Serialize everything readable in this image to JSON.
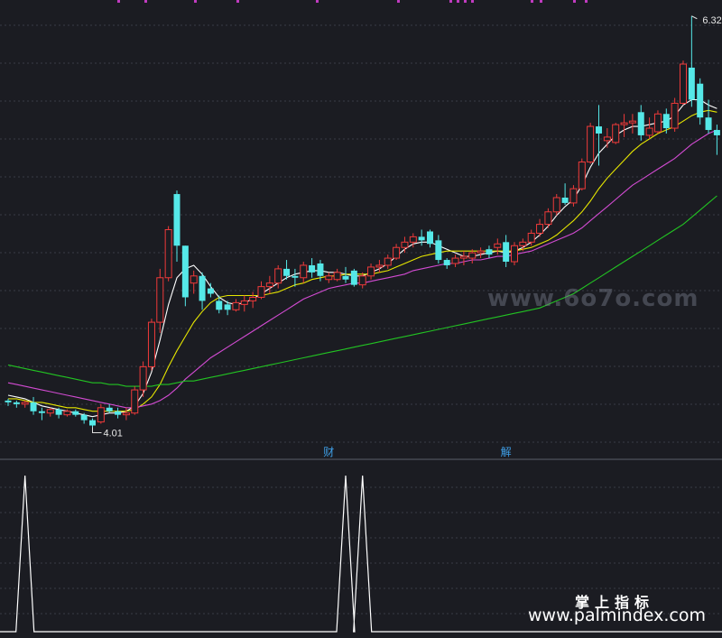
{
  "chart_data": [
    {
      "type": "candlestick",
      "y_range": [
        3.83,
        6.41
      ],
      "max_label": "6.32",
      "min_label": "4.01",
      "markers": [
        "财",
        "解"
      ],
      "candles": [
        [
          4.16,
          4.17,
          4.13,
          4.15
        ],
        [
          4.15,
          4.16,
          4.12,
          4.14
        ],
        [
          4.14,
          4.16,
          4.12,
          4.15
        ],
        [
          4.15,
          4.18,
          4.08,
          4.1
        ],
        [
          4.1,
          4.12,
          4.05,
          4.09
        ],
        [
          4.09,
          4.12,
          4.07,
          4.11
        ],
        [
          4.11,
          4.12,
          4.06,
          4.08
        ],
        [
          4.08,
          4.11,
          4.07,
          4.1
        ],
        [
          4.1,
          4.11,
          4.07,
          4.08
        ],
        [
          4.08,
          4.09,
          4.03,
          4.05
        ],
        [
          4.05,
          4.06,
          4.01,
          4.02
        ],
        [
          4.04,
          4.14,
          4.03,
          4.12
        ],
        [
          4.12,
          4.14,
          4.09,
          4.1
        ],
        [
          4.1,
          4.12,
          4.06,
          4.08
        ],
        [
          4.08,
          4.12,
          4.05,
          4.09
        ],
        [
          4.09,
          4.24,
          4.08,
          4.22
        ],
        [
          4.22,
          4.38,
          4.18,
          4.35
        ],
        [
          4.35,
          4.62,
          4.33,
          4.6
        ],
        [
          4.6,
          4.9,
          4.54,
          4.85
        ],
        [
          4.85,
          5.14,
          4.83,
          5.12
        ],
        [
          5.32,
          5.34,
          4.94,
          5.03
        ],
        [
          5.03,
          5.03,
          4.69,
          4.74
        ],
        [
          4.82,
          4.89,
          4.76,
          4.86
        ],
        [
          4.86,
          4.88,
          4.67,
          4.72
        ],
        [
          4.79,
          4.82,
          4.74,
          4.76
        ],
        [
          4.72,
          4.75,
          4.65,
          4.67
        ],
        [
          4.7,
          4.72,
          4.64,
          4.67
        ],
        [
          4.67,
          4.73,
          4.66,
          4.71
        ],
        [
          4.7,
          4.75,
          4.66,
          4.72
        ],
        [
          4.72,
          4.77,
          4.68,
          4.74
        ],
        [
          4.74,
          4.83,
          4.73,
          4.8
        ],
        [
          4.8,
          4.86,
          4.76,
          4.82
        ],
        [
          4.82,
          4.92,
          4.79,
          4.9
        ],
        [
          4.9,
          4.95,
          4.84,
          4.86
        ],
        [
          4.86,
          4.9,
          4.8,
          4.85
        ],
        [
          4.85,
          4.94,
          4.82,
          4.92
        ],
        [
          4.92,
          4.96,
          4.85,
          4.88
        ],
        [
          4.93,
          4.95,
          4.83,
          4.86
        ],
        [
          4.84,
          4.88,
          4.82,
          4.86
        ],
        [
          4.84,
          4.9,
          4.83,
          4.88
        ],
        [
          4.86,
          4.91,
          4.82,
          4.84
        ],
        [
          4.89,
          4.9,
          4.8,
          4.81
        ],
        [
          4.81,
          4.88,
          4.79,
          4.86
        ],
        [
          4.86,
          4.93,
          4.84,
          4.91
        ],
        [
          4.91,
          4.95,
          4.88,
          4.92
        ],
        [
          4.92,
          4.98,
          4.9,
          4.96
        ],
        [
          4.96,
          5.04,
          4.95,
          5.02
        ],
        [
          5.02,
          5.08,
          4.99,
          5.05
        ],
        [
          5.05,
          5.1,
          5.02,
          5.08
        ],
        [
          5.08,
          5.12,
          5.03,
          5.06
        ],
        [
          5.11,
          5.12,
          5.02,
          5.04
        ],
        [
          5.06,
          5.09,
          4.93,
          4.95
        ],
        [
          4.95,
          4.96,
          4.9,
          4.92
        ],
        [
          4.93,
          4.98,
          4.91,
          4.96
        ],
        [
          4.96,
          5.0,
          4.92,
          4.97
        ],
        [
          4.96,
          5.01,
          4.93,
          4.99
        ],
        [
          4.99,
          5.02,
          4.96,
          5.0
        ],
        [
          5.01,
          5.03,
          4.96,
          4.98
        ],
        [
          5.02,
          5.07,
          4.98,
          5.04
        ],
        [
          5.05,
          5.09,
          4.91,
          4.94
        ],
        [
          4.94,
          5.05,
          4.92,
          5.03
        ],
        [
          5.03,
          5.07,
          5.0,
          5.05
        ],
        [
          5.05,
          5.12,
          5.03,
          5.1
        ],
        [
          5.1,
          5.18,
          5.08,
          5.15
        ],
        [
          5.15,
          5.24,
          5.13,
          5.22
        ],
        [
          5.22,
          5.32,
          5.2,
          5.3
        ],
        [
          5.3,
          5.38,
          5.26,
          5.27
        ],
        [
          5.27,
          5.37,
          5.25,
          5.35
        ],
        [
          5.35,
          5.52,
          5.34,
          5.5
        ],
        [
          5.5,
          5.72,
          5.49,
          5.7
        ],
        [
          5.7,
          5.82,
          5.48,
          5.66
        ],
        [
          5.62,
          5.69,
          5.58,
          5.64
        ],
        [
          5.61,
          5.72,
          5.6,
          5.71
        ],
        [
          5.71,
          5.77,
          5.64,
          5.72
        ],
        [
          5.72,
          5.77,
          5.66,
          5.73
        ],
        [
          5.78,
          5.82,
          5.62,
          5.65
        ],
        [
          5.65,
          5.75,
          5.63,
          5.69
        ],
        [
          5.67,
          5.79,
          5.66,
          5.77
        ],
        [
          5.77,
          5.8,
          5.66,
          5.69
        ],
        [
          5.69,
          5.86,
          5.67,
          5.83
        ],
        [
          5.83,
          6.07,
          5.82,
          6.05
        ],
        [
          6.03,
          6.32,
          5.81,
          5.85
        ],
        [
          5.94,
          5.97,
          5.71,
          5.75
        ],
        [
          5.75,
          5.85,
          5.66,
          5.68
        ],
        [
          5.68,
          5.71,
          5.54,
          5.65
        ]
      ],
      "lines": [
        {
          "color": "#ffffff",
          "values": [
            4.19,
            4.18,
            4.17,
            4.15,
            4.13,
            4.12,
            4.11,
            4.1,
            4.09,
            4.08,
            4.07,
            4.08,
            4.09,
            4.09,
            4.1,
            4.13,
            4.2,
            4.32,
            4.5,
            4.7,
            4.85,
            4.9,
            4.92,
            4.87,
            4.8,
            4.74,
            4.71,
            4.7,
            4.71,
            4.73,
            4.76,
            4.79,
            4.82,
            4.85,
            4.87,
            4.88,
            4.89,
            4.89,
            4.88,
            4.88,
            4.87,
            4.86,
            4.86,
            4.88,
            4.9,
            4.93,
            4.97,
            5.01,
            5.04,
            5.05,
            5.05,
            5.03,
            5.01,
            4.99,
            4.97,
            4.97,
            4.98,
            4.99,
            5.0,
            4.99,
            5.0,
            5.02,
            5.05,
            5.09,
            5.14,
            5.2,
            5.25,
            5.29,
            5.37,
            5.47,
            5.55,
            5.6,
            5.65,
            5.68,
            5.7,
            5.7,
            5.71,
            5.72,
            5.73,
            5.76,
            5.82,
            5.85,
            5.85,
            5.82,
            5.8
          ]
        },
        {
          "color": "#e6e600",
          "values": [
            4.17,
            4.17,
            4.16,
            4.15,
            4.15,
            4.14,
            4.13,
            4.12,
            4.12,
            4.11,
            4.1,
            4.1,
            4.1,
            4.1,
            4.1,
            4.11,
            4.14,
            4.18,
            4.25,
            4.35,
            4.44,
            4.52,
            4.6,
            4.66,
            4.71,
            4.74,
            4.75,
            4.75,
            4.75,
            4.75,
            4.75,
            4.76,
            4.77,
            4.79,
            4.81,
            4.82,
            4.84,
            4.85,
            4.86,
            4.86,
            4.87,
            4.87,
            4.87,
            4.87,
            4.88,
            4.89,
            4.91,
            4.93,
            4.95,
            4.97,
            4.98,
            4.99,
            5.0,
            5.0,
            5.0,
            5.0,
            5.0,
            5.0,
            5.0,
            5.0,
            5.0,
            5.01,
            5.02,
            5.04,
            5.06,
            5.09,
            5.13,
            5.17,
            5.22,
            5.28,
            5.35,
            5.41,
            5.46,
            5.51,
            5.56,
            5.6,
            5.63,
            5.66,
            5.68,
            5.7,
            5.73,
            5.76,
            5.78,
            5.79,
            5.78
          ]
        },
        {
          "color": "#d24bd2",
          "values": [
            4.26,
            4.25,
            4.24,
            4.23,
            4.22,
            4.21,
            4.2,
            4.19,
            4.18,
            4.17,
            4.16,
            4.15,
            4.14,
            4.13,
            4.12,
            4.12,
            4.13,
            4.14,
            4.16,
            4.19,
            4.23,
            4.28,
            4.32,
            4.36,
            4.4,
            4.43,
            4.46,
            4.49,
            4.52,
            4.55,
            4.58,
            4.61,
            4.64,
            4.67,
            4.7,
            4.73,
            4.75,
            4.77,
            4.79,
            4.8,
            4.81,
            4.82,
            4.82,
            4.83,
            4.84,
            4.85,
            4.86,
            4.87,
            4.89,
            4.9,
            4.91,
            4.92,
            4.93,
            4.93,
            4.94,
            4.95,
            4.95,
            4.96,
            4.97,
            4.97,
            4.98,
            4.99,
            5.0,
            5.02,
            5.04,
            5.06,
            5.08,
            5.1,
            5.13,
            5.17,
            5.21,
            5.25,
            5.29,
            5.33,
            5.37,
            5.4,
            5.43,
            5.46,
            5.49,
            5.52,
            5.56,
            5.6,
            5.63,
            5.66,
            5.68
          ]
        },
        {
          "color": "#22c322",
          "values": [
            4.36,
            4.35,
            4.34,
            4.33,
            4.32,
            4.31,
            4.3,
            4.29,
            4.28,
            4.27,
            4.26,
            4.26,
            4.25,
            4.25,
            4.24,
            4.24,
            4.24,
            4.24,
            4.25,
            4.25,
            4.26,
            4.27,
            4.27,
            4.28,
            4.29,
            4.3,
            4.31,
            4.32,
            4.33,
            4.34,
            4.35,
            4.36,
            4.37,
            4.38,
            4.39,
            4.4,
            4.41,
            4.42,
            4.43,
            4.44,
            4.45,
            4.46,
            4.47,
            4.48,
            4.49,
            4.5,
            4.51,
            4.52,
            4.53,
            4.54,
            4.55,
            4.56,
            4.57,
            4.58,
            4.59,
            4.6,
            4.61,
            4.62,
            4.63,
            4.64,
            4.65,
            4.66,
            4.67,
            4.68,
            4.7,
            4.72,
            4.74,
            4.76,
            4.79,
            4.82,
            4.85,
            4.88,
            4.91,
            4.94,
            4.97,
            5.0,
            5.03,
            5.06,
            5.09,
            5.12,
            5.15,
            5.19,
            5.23,
            5.27,
            5.31
          ]
        }
      ]
    },
    {
      "type": "line",
      "y_range": [
        0,
        1
      ],
      "spikes": [
        {
          "index": 2,
          "value": 1
        },
        {
          "index": 40,
          "value": 1
        },
        {
          "index": 42,
          "value": 1
        }
      ]
    }
  ],
  "colors": {
    "up": "#ef3a3a",
    "down": "#55e8e8",
    "grid": "#3a3c46",
    "signal": "#ffffff",
    "max_marker": "#c03bc0"
  },
  "watermarks": {
    "middle": "www.6o7o.com",
    "brand_cn": "掌上指标",
    "brand_url": "www.palmindex.com"
  }
}
